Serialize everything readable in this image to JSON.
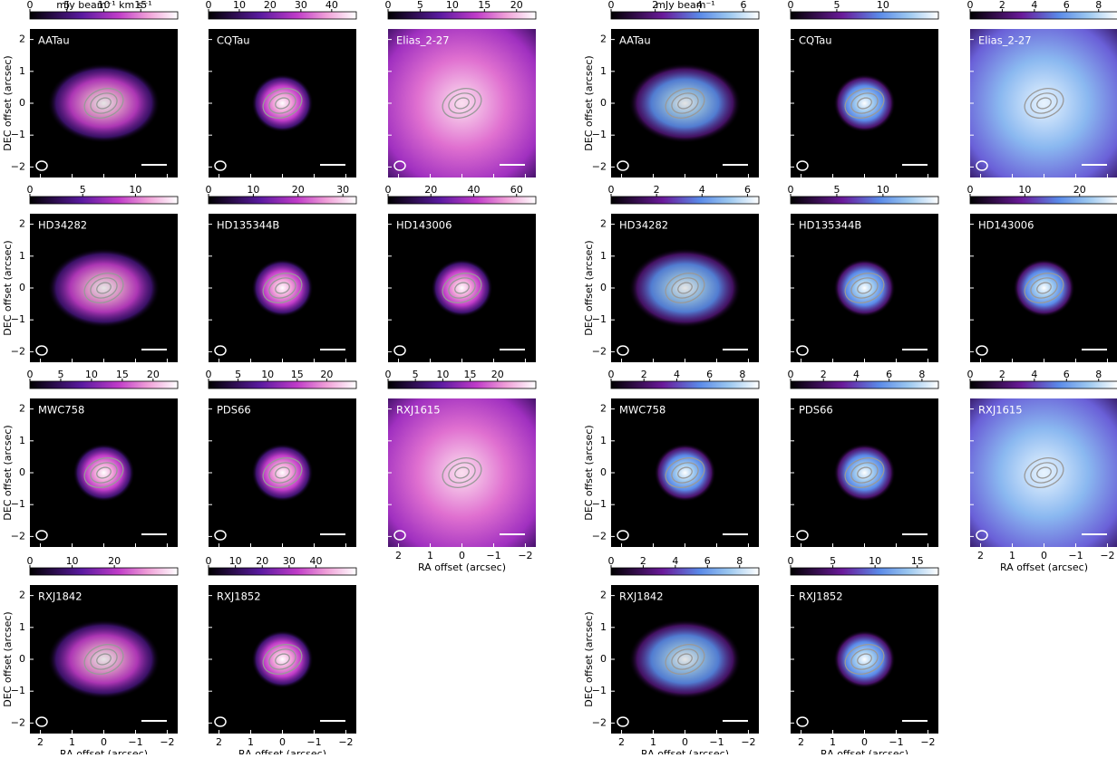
{
  "left_figure": {
    "colorbar_label": "mJy beam⁻¹ km s⁻¹",
    "panels": [
      {
        "name": "AATau",
        "cbar_lim": [
          0,
          20
        ],
        "cbar_ticks": [
          0,
          5,
          10,
          15
        ]
      },
      {
        "name": "CQTau",
        "cbar_lim": [
          0,
          48
        ],
        "cbar_ticks": [
          0,
          10,
          20,
          30,
          40
        ]
      },
      {
        "name": "Elias_2-27",
        "cbar_lim": [
          0,
          23
        ],
        "cbar_ticks": [
          0,
          5,
          10,
          15,
          20
        ]
      },
      {
        "name": "HD34282",
        "cbar_lim": [
          0,
          14
        ],
        "cbar_ticks": [
          0,
          5,
          10
        ]
      },
      {
        "name": "HD135344B",
        "cbar_lim": [
          0,
          33
        ],
        "cbar_ticks": [
          0,
          10,
          20,
          30
        ]
      },
      {
        "name": "HD143006",
        "cbar_lim": [
          0,
          69
        ],
        "cbar_ticks": [
          0,
          20,
          40,
          60
        ]
      },
      {
        "name": "MWC758",
        "cbar_lim": [
          0,
          24
        ],
        "cbar_ticks": [
          0,
          5,
          10,
          15,
          20
        ]
      },
      {
        "name": "PDS66",
        "cbar_lim": [
          0,
          25
        ],
        "cbar_ticks": [
          0,
          5,
          10,
          15,
          20
        ]
      },
      {
        "name": "RXJ1615",
        "cbar_lim": [
          0,
          27
        ],
        "cbar_ticks": [
          0,
          5,
          10,
          15,
          20
        ]
      },
      {
        "name": "RXJ1842",
        "cbar_lim": [
          0,
          35
        ],
        "cbar_ticks": [
          0,
          10,
          20
        ]
      },
      {
        "name": "RXJ1852",
        "cbar_lim": [
          0,
          55
        ],
        "cbar_ticks": [
          0,
          10,
          20,
          30,
          40
        ]
      }
    ]
  },
  "right_figure": {
    "colorbar_label": "mJy beam⁻¹",
    "panels": [
      {
        "name": "AATau",
        "cbar_lim": [
          0,
          6.7
        ],
        "cbar_ticks": [
          0,
          2,
          4,
          6
        ]
      },
      {
        "name": "CQTau",
        "cbar_lim": [
          0,
          16
        ],
        "cbar_ticks": [
          0,
          5,
          10
        ]
      },
      {
        "name": "Elias_2-27",
        "cbar_lim": [
          0,
          9.2
        ],
        "cbar_ticks": [
          0,
          2,
          4,
          6,
          8
        ]
      },
      {
        "name": "HD34282",
        "cbar_lim": [
          0,
          6.5
        ],
        "cbar_ticks": [
          0,
          2,
          4,
          6
        ]
      },
      {
        "name": "HD135344B",
        "cbar_lim": [
          0,
          16
        ],
        "cbar_ticks": [
          0,
          5,
          10
        ]
      },
      {
        "name": "HD143006",
        "cbar_lim": [
          0,
          27
        ],
        "cbar_ticks": [
          0,
          10,
          20
        ]
      },
      {
        "name": "MWC758",
        "cbar_lim": [
          0,
          9
        ],
        "cbar_ticks": [
          0,
          2,
          4,
          6,
          8
        ]
      },
      {
        "name": "PDS66",
        "cbar_lim": [
          0,
          9
        ],
        "cbar_ticks": [
          0,
          2,
          4,
          6,
          8
        ]
      },
      {
        "name": "RXJ1615",
        "cbar_lim": [
          0,
          9.2
        ],
        "cbar_ticks": [
          0,
          2,
          4,
          6,
          8
        ]
      },
      {
        "name": "RXJ1842",
        "cbar_lim": [
          0,
          9.2
        ],
        "cbar_ticks": [
          0,
          2,
          4,
          6,
          8
        ]
      },
      {
        "name": "RXJ1852",
        "cbar_lim": [
          0,
          17.5
        ],
        "cbar_ticks": [
          0,
          5,
          10,
          15
        ]
      }
    ]
  },
  "axes": {
    "ylabel": "DEC offset (arcsec)",
    "xlabel": "RA offset (arcsec)",
    "xlim": [
      2.33,
      -2.33
    ],
    "ylim": [
      -2.33,
      2.33
    ],
    "xticks": [
      2,
      1,
      0,
      {
        "value": -1,
        "label": "−1"
      },
      {
        "value": -2,
        "label": "−2"
      }
    ],
    "yticks": [
      {
        "value": -2,
        "label": "−2"
      },
      {
        "value": -1,
        "label": "−1"
      },
      0,
      1,
      2
    ]
  }
}
